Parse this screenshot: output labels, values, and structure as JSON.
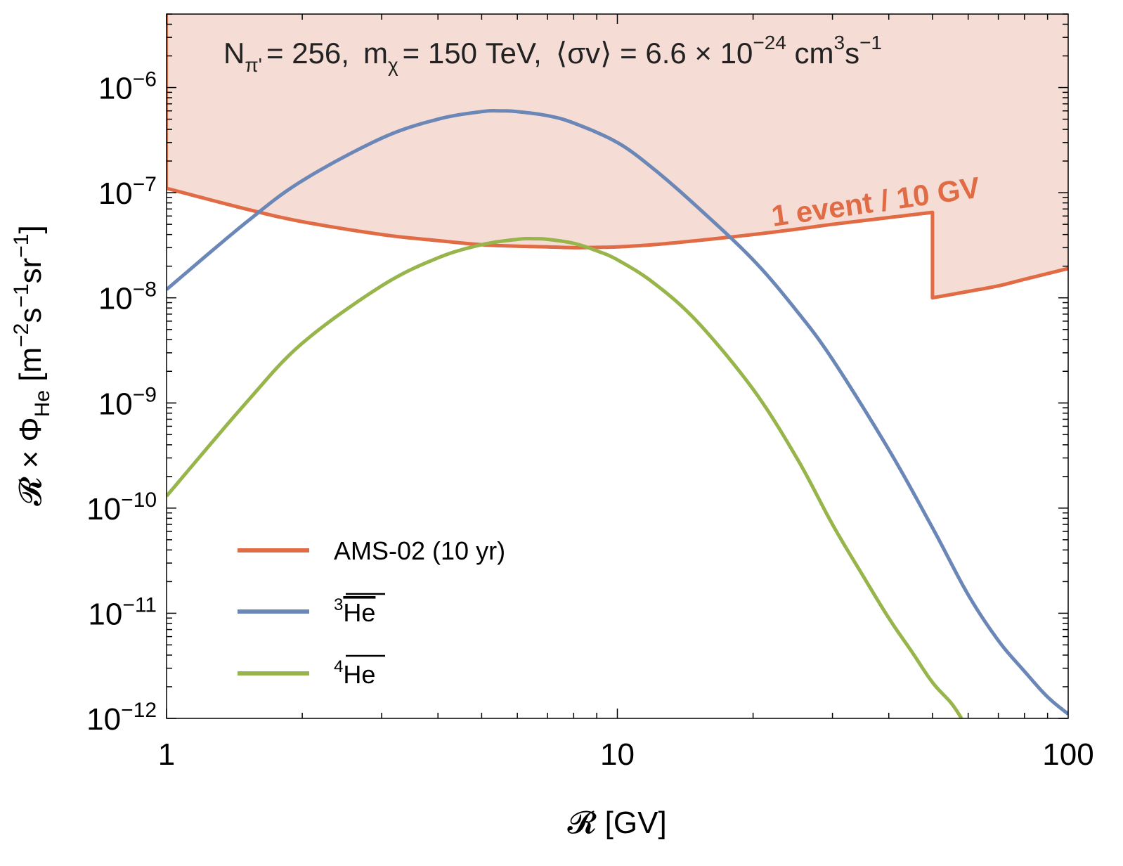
{
  "chart_data": {
    "type": "line",
    "title": "",
    "annotation_params": {
      "n_label": "N",
      "n_sub": "π'",
      "n_value": "= 256,",
      "m_label": "m",
      "m_sub": "χ",
      "m_value": "= 150 TeV,",
      "sigma_label": "⟨σv⟩ = 6.6 × 10",
      "sigma_exp": "−24",
      "sigma_unit_a": " cm",
      "sigma_unit_exp": "3",
      "sigma_unit_b": "s",
      "sigma_unit_exp2": "−1"
    },
    "xlabel": "𝓡 [GV]",
    "ylabel": {
      "main": "𝓡 × Φ",
      "sub": "He",
      "unit_a": " [m",
      "exp1": "−2",
      "unit_b": "s",
      "exp2": "−1",
      "unit_c": "sr",
      "exp3": "−1",
      "unit_d": "]"
    },
    "x_scale": "log",
    "y_scale": "log",
    "xlim": [
      1,
      100
    ],
    "ylim": [
      1e-12,
      5e-06
    ],
    "x_ticks": [
      {
        "value": 1,
        "label": "1"
      },
      {
        "value": 10,
        "label": "10"
      },
      {
        "value": 100,
        "label": "100"
      }
    ],
    "y_ticks": [
      {
        "value": 1e-06,
        "base": "10",
        "exp": "−6"
      },
      {
        "value": 1e-07,
        "base": "10",
        "exp": "−7"
      },
      {
        "value": 1e-08,
        "base": "10",
        "exp": "−8"
      },
      {
        "value": 1e-09,
        "base": "10",
        "exp": "−9"
      },
      {
        "value": 1e-10,
        "base": "10",
        "exp": "−10"
      },
      {
        "value": 1e-11,
        "base": "10",
        "exp": "−11"
      },
      {
        "value": 1e-12,
        "base": "10",
        "exp": "−12"
      }
    ],
    "series": [
      {
        "name": "AMS-02 (10 yr)",
        "color": "#e06b45",
        "fill_color": "#f5dcd4",
        "fill_above": true,
        "x": [
          1,
          1.5,
          2,
          3,
          4,
          5,
          6,
          7,
          8,
          9,
          10,
          12,
          15,
          20,
          25,
          30,
          40,
          50,
          50,
          60,
          70,
          80,
          90,
          100
        ],
        "y": [
          1.1e-07,
          7e-08,
          5.3e-08,
          4e-08,
          3.5e-08,
          3.2e-08,
          3.1e-08,
          3.05e-08,
          3e-08,
          3.02e-08,
          3.05e-08,
          3.2e-08,
          3.5e-08,
          4e-08,
          4.5e-08,
          5e-08,
          5.8e-08,
          6.5e-08,
          1e-08,
          1.15e-08,
          1.3e-08,
          1.5e-08,
          1.7e-08,
          1.9e-08
        ]
      },
      {
        "name": "He",
        "name_sup": "3",
        "color": "#6b87b8",
        "x": [
          1,
          1.5,
          2,
          3,
          4,
          5,
          5.5,
          6,
          7,
          8,
          10,
          12,
          15,
          20,
          25,
          30,
          40,
          50,
          60,
          70,
          80,
          90,
          100
        ],
        "y": [
          1.2e-08,
          5.2e-08,
          1.3e-07,
          3.3e-07,
          5e-07,
          5.9e-07,
          6e-07,
          5.9e-07,
          5.4e-07,
          4.6e-07,
          3e-07,
          1.7e-07,
          7.4e-08,
          2.3e-08,
          7.5e-09,
          2.6e-09,
          3.6e-10,
          6.5e-11,
          1.5e-11,
          5.5e-12,
          2.8e-12,
          1.6e-12,
          1.1e-12
        ]
      },
      {
        "name": "He",
        "name_sup": "4",
        "color": "#97b54a",
        "x": [
          1,
          1.5,
          2,
          3,
          4,
          5,
          6,
          6.5,
          7,
          8,
          9,
          10,
          12,
          15,
          20,
          25,
          30,
          35,
          40,
          45,
          50,
          55,
          58
        ],
        "y": [
          1.3e-10,
          1e-09,
          3.7e-09,
          1.3e-08,
          2.4e-08,
          3.2e-08,
          3.6e-08,
          3.65e-08,
          3.6e-08,
          3.3e-08,
          2.8e-08,
          2.3e-08,
          1.4e-08,
          6e-09,
          1.35e-09,
          3e-10,
          7e-11,
          2.3e-11,
          9e-12,
          4.3e-12,
          2.2e-12,
          1.4e-12,
          1e-12
        ]
      }
    ],
    "annotations": [
      {
        "text": "1 event / 10 GV",
        "color": "#e06b45"
      }
    ],
    "legend_position": "bottom-left",
    "grid": false
  }
}
